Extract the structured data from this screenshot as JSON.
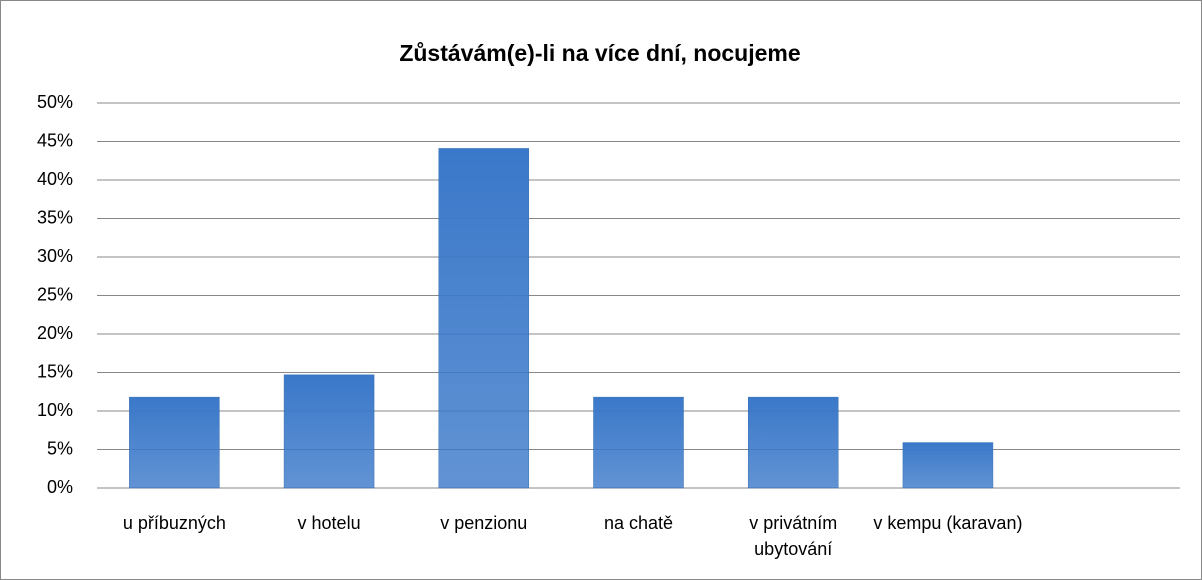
{
  "chart_data": {
    "type": "bar",
    "title": "Zůstávám(e)-li na více dní, nocujeme",
    "categories": [
      "u příbuzných",
      "v hotelu",
      "v penzionu",
      "na chatě",
      "v privátním ubytování",
      "v kempu (karavan)",
      null
    ],
    "values": [
      11.8,
      14.7,
      44.1,
      11.8,
      11.8,
      5.9,
      null
    ],
    "color": "#3a78c9",
    "ylim": [
      0,
      50
    ],
    "yticks": [
      {
        "value": 0,
        "label": "0%"
      },
      {
        "value": 5,
        "label": "5%"
      },
      {
        "value": 10,
        "label": "10%"
      },
      {
        "value": 15,
        "label": "15%"
      },
      {
        "value": 20,
        "label": "20%"
      },
      {
        "value": 25,
        "label": "25%"
      },
      {
        "value": 30,
        "label": "30%"
      },
      {
        "value": 35,
        "label": "35%"
      },
      {
        "value": 40,
        "label": "40%"
      },
      {
        "value": 45,
        "label": "45%"
      },
      {
        "value": 50,
        "label": "50%"
      }
    ],
    "grid": true
  }
}
